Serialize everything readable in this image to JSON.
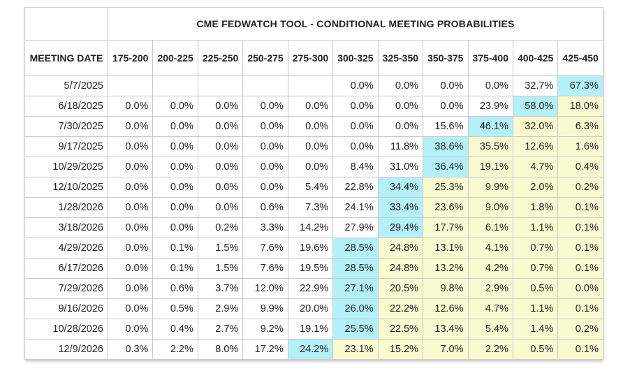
{
  "title": "CME FEDWATCH TOOL - CONDITIONAL MEETING PROBABILITIES",
  "date_header": "MEETING DATE",
  "ranges": [
    "175-200",
    "200-225",
    "225-250",
    "250-275",
    "275-300",
    "300-325",
    "325-350",
    "350-375",
    "375-400",
    "400-425",
    "425-450"
  ],
  "colors": {
    "max_highlight": "#b3f0f7",
    "tail_highlight": "#fafad1",
    "border": "#c9c9c9"
  },
  "rows": [
    {
      "date": "5/7/2025",
      "values": [
        "",
        "",
        "",
        "",
        "",
        "0.0%",
        "0.0%",
        "0.0%",
        "0.0%",
        "32.7%",
        "67.3%"
      ],
      "max_index": 10
    },
    {
      "date": "6/18/2025",
      "values": [
        "0.0%",
        "0.0%",
        "0.0%",
        "0.0%",
        "0.0%",
        "0.0%",
        "0.0%",
        "0.0%",
        "23.9%",
        "58.0%",
        "18.0%"
      ],
      "max_index": 9
    },
    {
      "date": "7/30/2025",
      "values": [
        "0.0%",
        "0.0%",
        "0.0%",
        "0.0%",
        "0.0%",
        "0.0%",
        "0.0%",
        "15.6%",
        "46.1%",
        "32.0%",
        "6.3%"
      ],
      "max_index": 8
    },
    {
      "date": "9/17/2025",
      "values": [
        "0.0%",
        "0.0%",
        "0.0%",
        "0.0%",
        "0.0%",
        "0.0%",
        "11.8%",
        "38.6%",
        "35.5%",
        "12.6%",
        "1.6%"
      ],
      "max_index": 7
    },
    {
      "date": "10/29/2025",
      "values": [
        "0.0%",
        "0.0%",
        "0.0%",
        "0.0%",
        "0.0%",
        "8.4%",
        "31.0%",
        "36.4%",
        "19.1%",
        "4.7%",
        "0.4%"
      ],
      "max_index": 7
    },
    {
      "date": "12/10/2025",
      "values": [
        "0.0%",
        "0.0%",
        "0.0%",
        "0.0%",
        "5.4%",
        "22.8%",
        "34.4%",
        "25.3%",
        "9.9%",
        "2.0%",
        "0.2%"
      ],
      "max_index": 6
    },
    {
      "date": "1/28/2026",
      "values": [
        "0.0%",
        "0.0%",
        "0.0%",
        "0.6%",
        "7.3%",
        "24.1%",
        "33.4%",
        "23.6%",
        "9.0%",
        "1.8%",
        "0.1%"
      ],
      "max_index": 6
    },
    {
      "date": "3/18/2026",
      "values": [
        "0.0%",
        "0.0%",
        "0.2%",
        "3.3%",
        "14.2%",
        "27.9%",
        "29.4%",
        "17.7%",
        "6.1%",
        "1.1%",
        "0.1%"
      ],
      "max_index": 6
    },
    {
      "date": "4/29/2026",
      "values": [
        "0.0%",
        "0.1%",
        "1.5%",
        "7.6%",
        "19.6%",
        "28.5%",
        "24.8%",
        "13.1%",
        "4.1%",
        "0.7%",
        "0.1%"
      ],
      "max_index": 5
    },
    {
      "date": "6/17/2026",
      "values": [
        "0.0%",
        "0.1%",
        "1.5%",
        "7.6%",
        "19.5%",
        "28.5%",
        "24.8%",
        "13.2%",
        "4.2%",
        "0.7%",
        "0.1%"
      ],
      "max_index": 5
    },
    {
      "date": "7/29/2026",
      "values": [
        "0.0%",
        "0.6%",
        "3.7%",
        "12.0%",
        "22.9%",
        "27.1%",
        "20.5%",
        "9.8%",
        "2.9%",
        "0.5%",
        "0.0%"
      ],
      "max_index": 5
    },
    {
      "date": "9/16/2026",
      "values": [
        "0.0%",
        "0.5%",
        "2.9%",
        "9.9%",
        "20.0%",
        "26.0%",
        "22.2%",
        "12.6%",
        "4.7%",
        "1.1%",
        "0.1%"
      ],
      "max_index": 5
    },
    {
      "date": "10/28/2026",
      "values": [
        "0.0%",
        "0.4%",
        "2.7%",
        "9.2%",
        "19.1%",
        "25.5%",
        "22.5%",
        "13.4%",
        "5.4%",
        "1.4%",
        "0.2%"
      ],
      "max_index": 5
    },
    {
      "date": "12/9/2026",
      "values": [
        "0.3%",
        "2.2%",
        "8.0%",
        "17.2%",
        "24.2%",
        "23.1%",
        "15.2%",
        "7.0%",
        "2.2%",
        "0.5%",
        "0.1%"
      ],
      "max_index": 4
    }
  ]
}
